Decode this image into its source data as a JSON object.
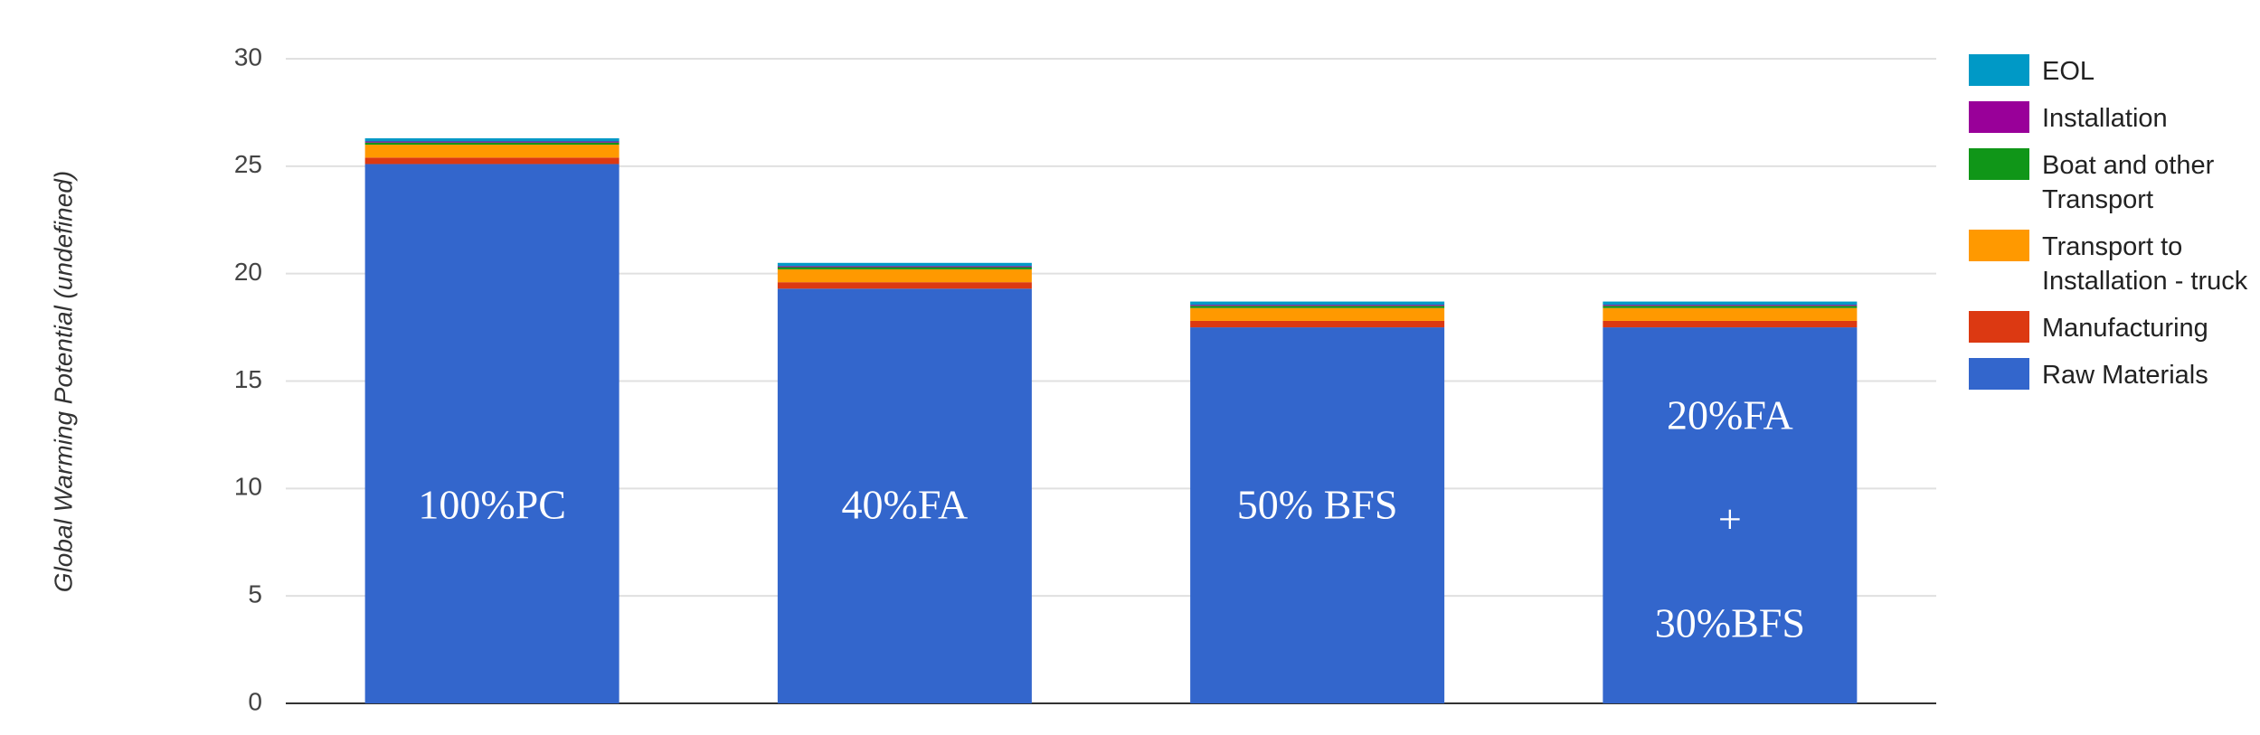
{
  "chart_data": {
    "type": "stacked_bar",
    "y_label": "Global Warming Potential (undefined)",
    "categories": [
      "100%PC",
      "40%FA",
      "50% BFS",
      "20%FA\n+\n30%BFS"
    ],
    "series": [
      {
        "name": "Raw Materials",
        "color": "#3366cc",
        "values": [
          25.1,
          19.3,
          17.5,
          17.5
        ]
      },
      {
        "name": "Manufacturing",
        "color": "#dc3912",
        "values": [
          0.3,
          0.3,
          0.3,
          0.3
        ]
      },
      {
        "name": "Transport to Installation - truck",
        "color": "#ff9900",
        "values": [
          0.6,
          0.6,
          0.6,
          0.6
        ]
      },
      {
        "name": "Boat and other Transport",
        "color": "#109618",
        "values": [
          0.1,
          0.1,
          0.1,
          0.1
        ]
      },
      {
        "name": "Installation",
        "color": "#990099",
        "values": [
          0.05,
          0.05,
          0.05,
          0.05
        ]
      },
      {
        "name": "EOL",
        "color": "#0099c6",
        "values": [
          0.15,
          0.15,
          0.15,
          0.15
        ]
      }
    ],
    "ylim": [
      0,
      30
    ],
    "yticks": [
      0,
      5,
      10,
      15,
      20,
      25,
      30
    ],
    "grid": true,
    "legend": "right"
  }
}
